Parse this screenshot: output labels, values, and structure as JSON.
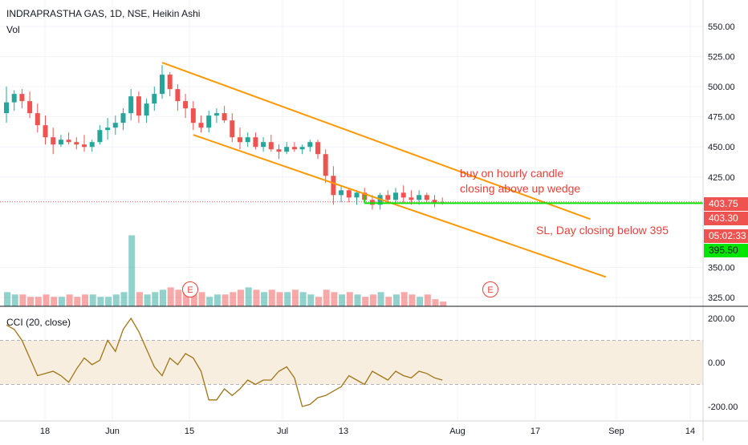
{
  "header": {
    "title": "INDRAPRASTHA GAS, 1D, NSE, Heikin Ashi",
    "volume_label": "Vol"
  },
  "indicator": {
    "label": "CCI (20, close)",
    "color": "#a07518",
    "band_color": "#f8eee0",
    "upper_band": 100,
    "lower_band": -100,
    "y_ticks": [
      "200.00",
      "0.00",
      "-200.00"
    ]
  },
  "price_axis": {
    "ticks": [
      "550.00",
      "525.00",
      "500.00",
      "475.00",
      "450.00",
      "425.00",
      "350.00",
      "325.00"
    ]
  },
  "price_tags": [
    {
      "text": "403.75",
      "bg": "#ef5350",
      "fg": "#ffffff"
    },
    {
      "text": "403.30",
      "bg": "#ef5350",
      "fg": "#ffffff"
    },
    {
      "text": "05:02:33",
      "bg": "#ef5350",
      "fg": "#ffffff"
    },
    {
      "text": "395.50",
      "bg": "#00e600",
      "fg": "#131722"
    }
  ],
  "time_axis": {
    "ticks": [
      "18",
      "Jun",
      "15",
      "Jul",
      "13",
      "Aug",
      "17",
      "Sep",
      "14"
    ]
  },
  "annotations": {
    "buy_line1": "buy on hourly candle",
    "buy_line2": "closing above up wedge",
    "sl": "SL, Day closing below 395"
  },
  "event_badges": [
    "E",
    "E"
  ],
  "colors": {
    "up": "#26a69a",
    "down": "#ef5350",
    "wedge": "#ff9800",
    "stop_line": "#00e600",
    "note_text": "#e8413a"
  },
  "chart_data": {
    "type": "candlestick",
    "series_type": "Heikin Ashi",
    "symbol": "INDRAPRASTHA GAS",
    "interval": "1D",
    "exchange": "NSE",
    "ylim": [
      320,
      560
    ],
    "candles": [
      {
        "o": 478,
        "h": 500,
        "l": 470,
        "c": 487
      },
      {
        "o": 487,
        "h": 497,
        "l": 480,
        "c": 494
      },
      {
        "o": 494,
        "h": 498,
        "l": 482,
        "c": 488
      },
      {
        "o": 488,
        "h": 496,
        "l": 474,
        "c": 478
      },
      {
        "o": 478,
        "h": 486,
        "l": 462,
        "c": 468
      },
      {
        "o": 468,
        "h": 476,
        "l": 452,
        "c": 458
      },
      {
        "o": 458,
        "h": 466,
        "l": 444,
        "c": 452
      },
      {
        "o": 452,
        "h": 460,
        "l": 450,
        "c": 456
      },
      {
        "o": 456,
        "h": 462,
        "l": 452,
        "c": 454
      },
      {
        "o": 454,
        "h": 458,
        "l": 448,
        "c": 452
      },
      {
        "o": 452,
        "h": 460,
        "l": 446,
        "c": 450
      },
      {
        "o": 450,
        "h": 456,
        "l": 446,
        "c": 454
      },
      {
        "o": 454,
        "h": 468,
        "l": 452,
        "c": 464
      },
      {
        "o": 464,
        "h": 474,
        "l": 456,
        "c": 466
      },
      {
        "o": 466,
        "h": 476,
        "l": 460,
        "c": 470
      },
      {
        "o": 470,
        "h": 482,
        "l": 464,
        "c": 478
      },
      {
        "o": 478,
        "h": 498,
        "l": 472,
        "c": 492
      },
      {
        "o": 492,
        "h": 496,
        "l": 470,
        "c": 476
      },
      {
        "o": 476,
        "h": 490,
        "l": 470,
        "c": 486
      },
      {
        "o": 486,
        "h": 500,
        "l": 480,
        "c": 494
      },
      {
        "o": 494,
        "h": 518,
        "l": 490,
        "c": 510
      },
      {
        "o": 510,
        "h": 512,
        "l": 492,
        "c": 498
      },
      {
        "o": 498,
        "h": 502,
        "l": 480,
        "c": 488
      },
      {
        "o": 488,
        "h": 494,
        "l": 474,
        "c": 482
      },
      {
        "o": 482,
        "h": 488,
        "l": 464,
        "c": 470
      },
      {
        "o": 470,
        "h": 476,
        "l": 462,
        "c": 466
      },
      {
        "o": 466,
        "h": 480,
        "l": 462,
        "c": 476
      },
      {
        "o": 476,
        "h": 482,
        "l": 470,
        "c": 478
      },
      {
        "o": 478,
        "h": 484,
        "l": 470,
        "c": 472
      },
      {
        "o": 472,
        "h": 478,
        "l": 454,
        "c": 458
      },
      {
        "o": 458,
        "h": 466,
        "l": 448,
        "c": 454
      },
      {
        "o": 454,
        "h": 462,
        "l": 450,
        "c": 458
      },
      {
        "o": 458,
        "h": 462,
        "l": 448,
        "c": 450
      },
      {
        "o": 450,
        "h": 458,
        "l": 446,
        "c": 454
      },
      {
        "o": 454,
        "h": 460,
        "l": 446,
        "c": 448
      },
      {
        "o": 448,
        "h": 452,
        "l": 440,
        "c": 446
      },
      {
        "o": 446,
        "h": 454,
        "l": 444,
        "c": 450
      },
      {
        "o": 450,
        "h": 454,
        "l": 446,
        "c": 448
      },
      {
        "o": 448,
        "h": 452,
        "l": 444,
        "c": 450
      },
      {
        "o": 450,
        "h": 456,
        "l": 446,
        "c": 454
      },
      {
        "o": 454,
        "h": 456,
        "l": 440,
        "c": 444
      },
      {
        "o": 444,
        "h": 448,
        "l": 420,
        "c": 426
      },
      {
        "o": 426,
        "h": 434,
        "l": 402,
        "c": 410
      },
      {
        "o": 410,
        "h": 418,
        "l": 404,
        "c": 414
      },
      {
        "o": 414,
        "h": 416,
        "l": 404,
        "c": 408
      },
      {
        "o": 408,
        "h": 414,
        "l": 402,
        "c": 412
      },
      {
        "o": 412,
        "h": 416,
        "l": 404,
        "c": 406
      },
      {
        "o": 406,
        "h": 410,
        "l": 398,
        "c": 402
      },
      {
        "o": 402,
        "h": 412,
        "l": 398,
        "c": 410
      },
      {
        "o": 410,
        "h": 414,
        "l": 404,
        "c": 406
      },
      {
        "o": 406,
        "h": 416,
        "l": 402,
        "c": 412
      },
      {
        "o": 412,
        "h": 418,
        "l": 404,
        "c": 408
      },
      {
        "o": 408,
        "h": 414,
        "l": 402,
        "c": 406
      },
      {
        "o": 406,
        "h": 414,
        "l": 402,
        "c": 410
      },
      {
        "o": 410,
        "h": 412,
        "l": 404,
        "c": 406
      },
      {
        "o": 406,
        "h": 410,
        "l": 400,
        "c": 404
      },
      {
        "o": 404,
        "h": 408,
        "l": 402,
        "c": 403.75
      }
    ],
    "volume": [
      6,
      5,
      5,
      4,
      4,
      5,
      4,
      4,
      5,
      4,
      5,
      5,
      4,
      4,
      5,
      6,
      30,
      6,
      5,
      6,
      7,
      8,
      7,
      6,
      5,
      6,
      4,
      5,
      5,
      6,
      7,
      8,
      7,
      6,
      7,
      6,
      6,
      7,
      6,
      5,
      4,
      7,
      6,
      5,
      6,
      5,
      4,
      5,
      6,
      4,
      5,
      6,
      5,
      4,
      5,
      3,
      2
    ],
    "cci": [
      170,
      150,
      100,
      20,
      -60,
      -50,
      -40,
      -60,
      -90,
      -30,
      20,
      -10,
      10,
      100,
      50,
      150,
      200,
      140,
      60,
      -20,
      -60,
      20,
      -10,
      40,
      20,
      -40,
      -170,
      -170,
      -120,
      -150,
      -120,
      -80,
      -100,
      -80,
      -80,
      -40,
      -20,
      -70,
      -200,
      -190,
      -160,
      -150,
      -130,
      -110,
      -60,
      -80,
      -100,
      -40,
      -60,
      -80,
      -40,
      -60,
      -70,
      -40,
      -50,
      -70,
      -80
    ],
    "wedge_upper": {
      "from": {
        "index": 20,
        "price": 520
      },
      "to": {
        "index": 75,
        "price": 390
      }
    },
    "wedge_lower": {
      "from": {
        "index": 24,
        "price": 460
      },
      "to": {
        "index": 77,
        "price": 342
      }
    },
    "stop_line_price": 403.3,
    "last_price": 403.75
  }
}
